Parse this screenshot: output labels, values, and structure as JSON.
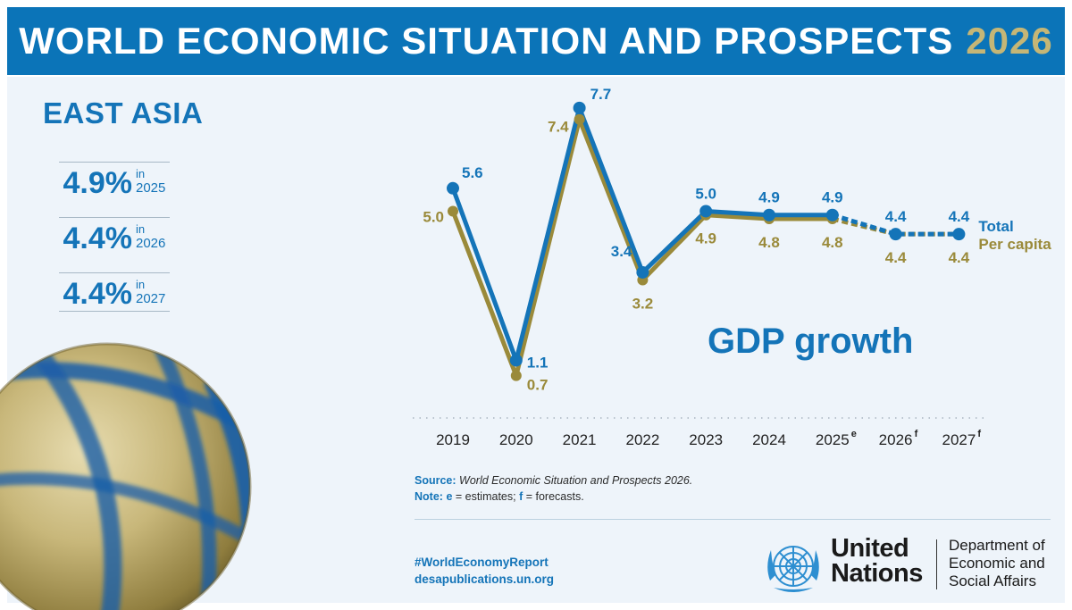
{
  "banner": {
    "title": "WORLD ECONOMIC SITUATION AND PROSPECTS",
    "year": "2026"
  },
  "region": "EAST ASIA",
  "highlights": [
    {
      "value": "4.9%",
      "in_label": "in",
      "year": "2025"
    },
    {
      "value": "4.4%",
      "in_label": "in",
      "year": "2026"
    },
    {
      "value": "4.4%",
      "in_label": "in",
      "year": "2027"
    }
  ],
  "colors": {
    "total": "#1474b8",
    "per_capita": "#9a8a3a",
    "banner": "#0b74b8",
    "accent_gold": "#c5b676"
  },
  "chart_data": {
    "type": "line",
    "title": "GDP growth",
    "x": [
      "2019",
      "2020",
      "2021",
      "2022",
      "2023",
      "2024",
      "2025",
      "2026",
      "2027"
    ],
    "x_superscripts": [
      "",
      "",
      "",
      "",
      "",
      "",
      "e",
      "f",
      "f"
    ],
    "series": [
      {
        "name": "Total",
        "values": [
          5.6,
          1.1,
          7.7,
          3.4,
          5.0,
          4.9,
          4.9,
          4.4,
          4.4
        ]
      },
      {
        "name": "Per capita",
        "values": [
          5.0,
          0.7,
          7.4,
          3.2,
          4.9,
          4.8,
          4.8,
          4.4,
          4.4
        ]
      }
    ],
    "value_labels": {
      "Total": [
        "5.6",
        "1.1",
        "7.7",
        "3.4",
        "5.0",
        "4.9",
        "4.9",
        "4.4",
        "4.4"
      ],
      "Per capita": [
        "5.0",
        "0.7",
        "7.4",
        "3.2",
        "4.9",
        "4.8",
        "4.8",
        "4.4",
        "4.4"
      ]
    },
    "estimate_from_index": 6,
    "ylim": [
      0.2,
      8.0
    ],
    "grid": false,
    "legend": "right"
  },
  "source": {
    "label": "Source:",
    "text": "World Economic Situation and Prospects 2026."
  },
  "note": {
    "label": "Note:",
    "e_key": "e",
    "e_text": " = estimates; ",
    "f_key": "f",
    "f_text": " = forecasts."
  },
  "footer": {
    "hashtag": "#WorldEconomyReport",
    "website": "desapublications.un.org",
    "un_line1": "United",
    "un_line2": "Nations",
    "desa_line1": "Department of",
    "desa_line2": "Economic and",
    "desa_line3": "Social Affairs"
  }
}
